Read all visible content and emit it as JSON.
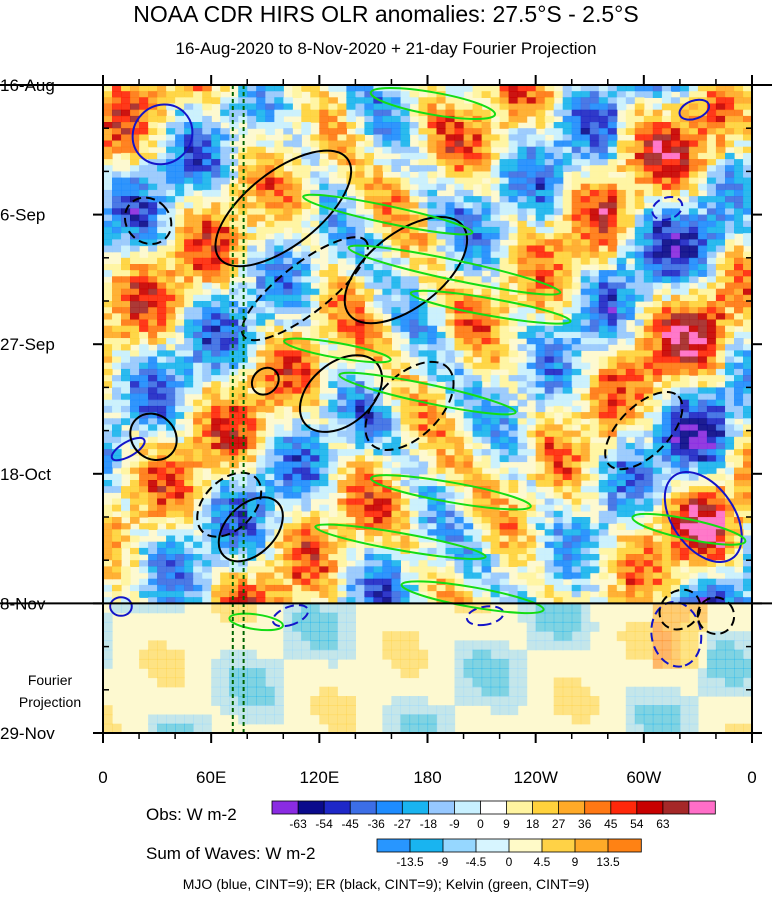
{
  "title": "NOAA CDR HIRS OLR anomalies: 27.5°S - 2.5°S",
  "subtitle": "16-Aug-2020 to 8-Nov-2020 + 21-day Fourier Projection",
  "footnote": "MJO (blue, CINT=9); ER (black, CINT=9); Kelvin (green, CINT=9)",
  "chart_data": {
    "type": "heatmap",
    "xlabel": "",
    "ylabel": "",
    "x_ticks": [
      {
        "label": "0",
        "lon": 0
      },
      {
        "label": "60E",
        "lon": 60
      },
      {
        "label": "120E",
        "lon": 120
      },
      {
        "label": "180",
        "lon": 180
      },
      {
        "label": "120W",
        "lon": 240
      },
      {
        "label": "60W",
        "lon": 300
      },
      {
        "label": "0",
        "lon": 360
      }
    ],
    "xlim": [
      0,
      360
    ],
    "y_ticks": [
      {
        "label": "16-Aug",
        "day": 0
      },
      {
        "label": "6-Sep",
        "day": 21
      },
      {
        "label": "27-Sep",
        "day": 42
      },
      {
        "label": "18-Oct",
        "day": 63
      },
      {
        "label": "8-Nov",
        "day": 84
      },
      {
        "label": "29-Nov",
        "day": 105
      }
    ],
    "ylim": [
      0,
      105
    ],
    "observation_end_day": 84,
    "projection_label": [
      "Fourier",
      "Projection"
    ],
    "reference_lines_lon": [
      72,
      78
    ],
    "obs_colorbar": {
      "label": "Obs: W m-2",
      "ticks": [
        "-63",
        "-54",
        "-45",
        "-36",
        "-27",
        "-18",
        "-9",
        "0",
        "9",
        "18",
        "27",
        "36",
        "45",
        "54",
        "63"
      ],
      "colors": [
        "#8a2be2",
        "#0a0a8c",
        "#1e28c8",
        "#3c6ee6",
        "#1e8cff",
        "#19b4f0",
        "#96c8ff",
        "#c8f0ff",
        "#ffffff",
        "#fff4a0",
        "#ffd23c",
        "#ffaa28",
        "#ff7814",
        "#ff280a",
        "#c80000",
        "#a52828",
        "#ff6ec8"
      ]
    },
    "waves_colorbar": {
      "label": "Sum of Waves: W m-2",
      "ticks": [
        "-13.5",
        "-9",
        "-4.5",
        "0",
        "4.5",
        "9",
        "13.5"
      ],
      "colors": [
        "#2896ff",
        "#19b4f0",
        "#96d7ff",
        "#d7f5ff",
        "#fffac8",
        "#ffd246",
        "#ffaa28",
        "#ff8214"
      ]
    },
    "series": [
      {
        "name": "MJO",
        "color": "#1414c8",
        "contours": [
          {
            "lon": 33,
            "day": 8,
            "rx": 16,
            "ry": 5,
            "angle": 45,
            "dash": false
          },
          {
            "lon": 14,
            "day": 59,
            "rx": 4,
            "ry": 3,
            "angle": 60,
            "dash": false
          },
          {
            "lon": 10,
            "day": 84.5,
            "rx": 6,
            "ry": 1.5,
            "angle": 0,
            "dash": false
          },
          {
            "lon": 104,
            "day": 86,
            "rx": 5,
            "ry": 3,
            "angle": 70,
            "dash": true
          },
          {
            "lon": 212,
            "day": 86,
            "rx": 5,
            "ry": 3,
            "angle": 80,
            "dash": true
          },
          {
            "lon": 318,
            "day": 89,
            "rx": 18,
            "ry": 4,
            "angle": 80,
            "dash": true
          },
          {
            "lon": 333,
            "day": 70,
            "rx": 28,
            "ry": 5,
            "angle": 55,
            "dash": false
          },
          {
            "lon": 313,
            "day": 20,
            "rx": 6,
            "ry": 2.5,
            "angle": 70,
            "dash": true
          },
          {
            "lon": 328,
            "day": 4,
            "rx": 5,
            "ry": 2.5,
            "angle": 70,
            "dash": false
          }
        ]
      },
      {
        "name": "ER",
        "color": "#000000",
        "contours": [
          {
            "lon": 100,
            "day": 20,
            "rx": 45,
            "ry": 6,
            "angle": -38,
            "dash": false
          },
          {
            "lon": 25,
            "day": 22,
            "rx": 12,
            "ry": 4,
            "angle": -45,
            "dash": true
          },
          {
            "lon": 168,
            "day": 30,
            "rx": 40,
            "ry": 6,
            "angle": -38,
            "dash": false
          },
          {
            "lon": 112,
            "day": 33,
            "rx": 43,
            "ry": 4,
            "angle": -38,
            "dash": true
          },
          {
            "lon": 170,
            "day": 52,
            "rx": 30,
            "ry": 5,
            "angle": -45,
            "dash": true
          },
          {
            "lon": 132,
            "day": 50,
            "rx": 26,
            "ry": 5,
            "angle": -40,
            "dash": false
          },
          {
            "lon": 28,
            "day": 57,
            "rx": 12,
            "ry": 4,
            "angle": -45,
            "dash": false
          },
          {
            "lon": 70,
            "day": 68,
            "rx": 21,
            "ry": 4,
            "angle": -45,
            "dash": true
          },
          {
            "lon": 82,
            "day": 72,
            "rx": 21,
            "ry": 4,
            "angle": -45,
            "dash": false
          },
          {
            "lon": 300,
            "day": 56,
            "rx": 27,
            "ry": 4,
            "angle": -45,
            "dash": true
          },
          {
            "lon": 90,
            "day": 48,
            "rx": 8,
            "ry": 2,
            "angle": -45,
            "dash": false
          },
          {
            "lon": 320,
            "day": 85,
            "rx": 12,
            "ry": 3,
            "angle": -40,
            "dash": true
          },
          {
            "lon": 340,
            "day": 86,
            "rx": 10,
            "ry": 3,
            "angle": -40,
            "dash": true
          }
        ]
      },
      {
        "name": "Kelvin",
        "color": "#14dc14",
        "contours": [
          {
            "lon": 183,
            "day": 3,
            "rx": 35,
            "ry": 1.8,
            "angle": 10,
            "dash": false
          },
          {
            "lon": 158,
            "day": 21,
            "rx": 48,
            "ry": 1.4,
            "angle": 12,
            "dash": false
          },
          {
            "lon": 195,
            "day": 30,
            "rx": 60,
            "ry": 1.6,
            "angle": 12,
            "dash": false
          },
          {
            "lon": 215,
            "day": 36,
            "rx": 45,
            "ry": 1.4,
            "angle": 10,
            "dash": false
          },
          {
            "lon": 180,
            "day": 50,
            "rx": 50,
            "ry": 1.5,
            "angle": 12,
            "dash": false
          },
          {
            "lon": 193,
            "day": 66,
            "rx": 45,
            "ry": 1.6,
            "angle": 10,
            "dash": false
          },
          {
            "lon": 165,
            "day": 74,
            "rx": 48,
            "ry": 1.4,
            "angle": 10,
            "dash": false
          },
          {
            "lon": 205,
            "day": 83,
            "rx": 40,
            "ry": 1.6,
            "angle": 10,
            "dash": false
          },
          {
            "lon": 325,
            "day": 72,
            "rx": 32,
            "ry": 1.6,
            "angle": 12,
            "dash": false
          },
          {
            "lon": 85,
            "day": 87,
            "rx": 15,
            "ry": 1.2,
            "angle": 8,
            "dash": false
          },
          {
            "lon": 130,
            "day": 43,
            "rx": 30,
            "ry": 1.2,
            "angle": 10,
            "dash": false
          }
        ]
      }
    ]
  }
}
